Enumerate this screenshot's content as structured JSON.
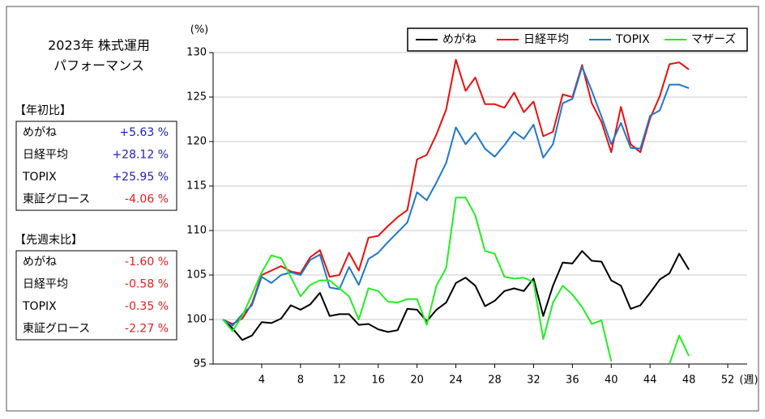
{
  "panel": {
    "title_lines": [
      "2023年  株式運用",
      "パフォーマンス"
    ],
    "tables": [
      {
        "heading": "【年初比】",
        "rows": [
          {
            "name": "めがね",
            "value": "+5.63 %",
            "color": "#2020c0"
          },
          {
            "name": "日経平均",
            "value": "+28.12 %",
            "color": "#2020c0"
          },
          {
            "name": "TOPIX",
            "value": "+25.95 %",
            "color": "#2020c0"
          },
          {
            "name": "東証グロース",
            "value": "-4.06 %",
            "color": "#e02020"
          }
        ]
      },
      {
        "heading": "【先週末比】",
        "rows": [
          {
            "name": "めがね",
            "value": "-1.60 %",
            "color": "#e02020"
          },
          {
            "name": "日経平均",
            "value": "-0.58 %",
            "color": "#e02020"
          },
          {
            "name": "TOPIX",
            "value": "-0.35 %",
            "color": "#e02020"
          },
          {
            "name": "東証グロース",
            "value": "-2.27 %",
            "color": "#e02020"
          }
        ]
      }
    ]
  },
  "chart_data": {
    "type": "line",
    "y_unit": "(%)",
    "x_unit": "(週)",
    "x": [
      0,
      1,
      2,
      3,
      4,
      5,
      6,
      7,
      8,
      9,
      10,
      11,
      12,
      13,
      14,
      15,
      16,
      17,
      18,
      19,
      20,
      21,
      22,
      23,
      24,
      25,
      26,
      27,
      28,
      29,
      30,
      31,
      32,
      33,
      34,
      35,
      36,
      37,
      38,
      39,
      40,
      41,
      42,
      43,
      44,
      45,
      46,
      47,
      48
    ],
    "series": [
      {
        "name": "めがね",
        "color": "#000000",
        "values": [
          100,
          99,
          97.7,
          98.2,
          99.7,
          99.6,
          100.1,
          101.6,
          101.1,
          101.7,
          103,
          100.4,
          100.6,
          100.6,
          99.4,
          99.5,
          98.9,
          98.6,
          98.8,
          101.2,
          101.1,
          99.8,
          101.1,
          101.9,
          104.1,
          104.7,
          103.8,
          101.5,
          102.1,
          103.2,
          103.5,
          103.2,
          104.6,
          100.4,
          103.8,
          106.4,
          106.3,
          107.7,
          106.6,
          106.5,
          104.4,
          103.8,
          101.2,
          101.6,
          103,
          104.5,
          105.2,
          107.4,
          105.6
        ]
      },
      {
        "name": "日経平均",
        "color": "#e81010",
        "values": [
          100,
          99.5,
          100.1,
          101.8,
          105,
          105.5,
          106,
          105.4,
          105.2,
          107,
          107.8,
          104.8,
          105,
          107.5,
          105.5,
          109.2,
          109.4,
          110.5,
          111.5,
          112.3,
          118,
          118.5,
          120.8,
          123.6,
          129.2,
          125.7,
          127.2,
          124.2,
          124.2,
          123.8,
          125.5,
          123.3,
          124.5,
          120.6,
          121.1,
          125.3,
          125,
          128.6,
          124.3,
          122.2,
          118.8,
          123.9,
          119.7,
          118.8,
          122.6,
          125.1,
          128.7,
          128.9,
          128.1
        ]
      },
      {
        "name": "TOPIX",
        "color": "#1e78c8",
        "values": [
          100,
          99.3,
          100.6,
          101.6,
          104.8,
          104.1,
          105,
          105.3,
          105,
          106.7,
          107.3,
          103.6,
          103.4,
          105.9,
          103.9,
          106.8,
          107.5,
          108.7,
          109.8,
          110.9,
          114.3,
          113.4,
          115.4,
          117.6,
          121.6,
          119.7,
          121,
          119.2,
          118.3,
          119.6,
          121.1,
          120.3,
          121.9,
          118.2,
          119.7,
          124.3,
          124.8,
          128.4,
          125.7,
          122.8,
          119.7,
          122.1,
          119.3,
          119.2,
          122.9,
          123.5,
          126.4,
          126.4,
          126
        ]
      },
      {
        "name": "マザーズ",
        "color": "#22ee22",
        "values": [
          100,
          98.7,
          100.4,
          102.8,
          105.3,
          107.2,
          106.9,
          104.8,
          102.6,
          103.9,
          104.4,
          104.4,
          103.5,
          102.6,
          100,
          103.5,
          103.2,
          102,
          101.9,
          102.3,
          102.3,
          99.4,
          103.8,
          105.8,
          113.7,
          113.7,
          111.7,
          107.7,
          107.4,
          104.8,
          104.6,
          104.7,
          104.2,
          97.8,
          101.9,
          103.8,
          102.8,
          101.4,
          99.5,
          99.9,
          95.3,
          null,
          null,
          null,
          null,
          null,
          95,
          98.2,
          95.9
        ]
      }
    ],
    "xlim": [
      -1,
      54
    ],
    "xticks": [
      4,
      8,
      12,
      16,
      20,
      24,
      28,
      32,
      36,
      40,
      44,
      48,
      52
    ],
    "ylim": [
      95,
      130
    ],
    "yticks": [
      95,
      100,
      105,
      110,
      115,
      120,
      125,
      130
    ],
    "grid": true,
    "legend": "top-right"
  }
}
